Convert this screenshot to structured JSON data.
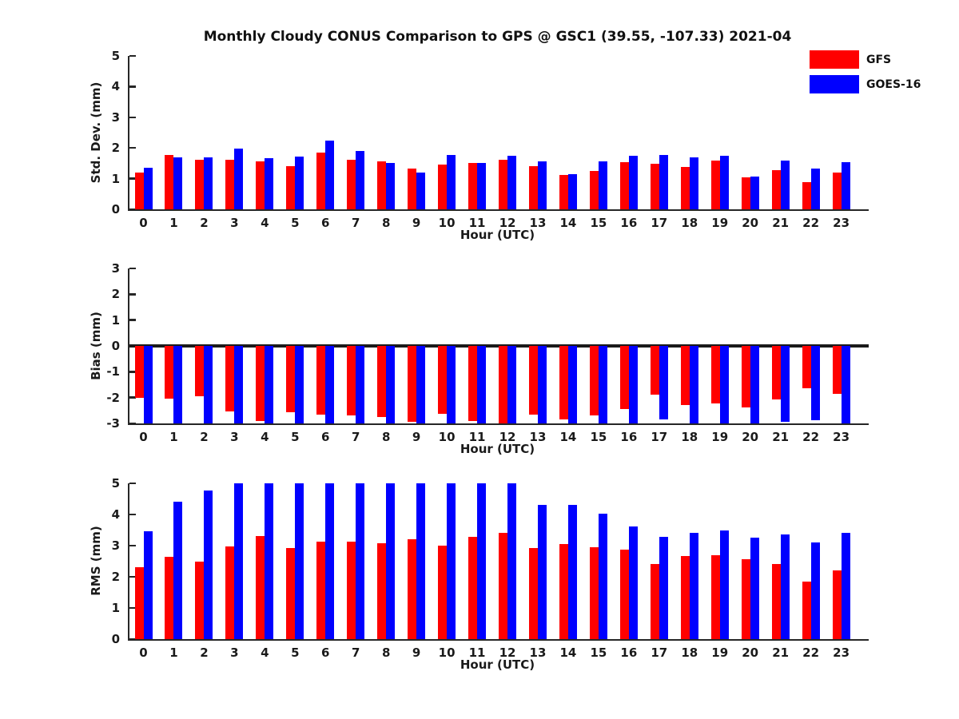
{
  "title": "Monthly Cloudy CONUS Comparison to GPS @ GSC1 (39.55, -107.33) 2021-04",
  "legend": {
    "items": [
      {
        "label": "GFS",
        "color": "#ff0000"
      },
      {
        "label": "GOES-16",
        "color": "#0000ff"
      }
    ]
  },
  "colors": {
    "gfs_bar": "#ff0000",
    "goes16_bar": "#0000ff",
    "axis": "#262626",
    "text": "#1a1a1a"
  },
  "chart_data": [
    {
      "type": "bar",
      "ylabel": "Std. Dev. (mm)",
      "xlabel": "Hour (UTC)",
      "ylim": [
        0,
        5
      ],
      "yticks": [
        0,
        1,
        2,
        3,
        4,
        5
      ],
      "grid": false,
      "legend_position": "top-right",
      "categories": [
        0,
        1,
        2,
        3,
        4,
        5,
        6,
        7,
        8,
        9,
        10,
        11,
        12,
        13,
        14,
        15,
        16,
        17,
        18,
        19,
        20,
        21,
        22,
        23
      ],
      "series": [
        {
          "name": "GFS",
          "color": "#ff0000",
          "values": [
            1.2,
            1.78,
            1.62,
            1.61,
            1.57,
            1.4,
            1.85,
            1.61,
            1.55,
            1.32,
            1.45,
            1.51,
            1.61,
            1.4,
            1.11,
            1.25,
            1.53,
            1.48,
            1.38,
            1.58,
            1.03,
            1.27,
            0.88,
            1.21
          ]
        },
        {
          "name": "GOES-16",
          "color": "#0000ff",
          "values": [
            1.35,
            1.7,
            1.7,
            1.99,
            1.67,
            1.71,
            2.23,
            1.9,
            1.5,
            1.19,
            1.76,
            1.52,
            1.74,
            1.57,
            1.14,
            1.57,
            1.75,
            1.77,
            1.7,
            1.74,
            1.06,
            1.6,
            1.32,
            1.53
          ]
        }
      ]
    },
    {
      "type": "bar",
      "ylabel": "Bias (mm)",
      "xlabel": "Hour (UTC)",
      "ylim": [
        -3,
        3
      ],
      "yticks": [
        -3,
        -2,
        -1,
        0,
        1,
        2,
        3
      ],
      "grid": false,
      "categories": [
        0,
        1,
        2,
        3,
        4,
        5,
        6,
        7,
        8,
        9,
        10,
        11,
        12,
        13,
        14,
        15,
        16,
        17,
        18,
        19,
        20,
        21,
        22,
        23
      ],
      "series": [
        {
          "name": "GFS",
          "color": "#ff0000",
          "values": [
            -2.0,
            -2.05,
            -1.95,
            -2.53,
            -2.92,
            -2.58,
            -2.65,
            -2.68,
            -2.74,
            -2.95,
            -2.62,
            -2.9,
            -3.0,
            -2.65,
            -2.84,
            -2.7,
            -2.45,
            -1.9,
            -2.3,
            -2.22,
            -2.39,
            -2.06,
            -1.64,
            -1.86
          ]
        },
        {
          "name": "GOES-16",
          "color": "#0000ff",
          "values": [
            -3.0,
            -3.0,
            -3.0,
            -3.0,
            -3.0,
            -3.0,
            -3.0,
            -3.0,
            -3.0,
            -3.0,
            -3.0,
            -3.0,
            -3.0,
            -3.0,
            -3.0,
            -3.0,
            -3.0,
            -2.84,
            -3.0,
            -3.0,
            -3.0,
            -2.93,
            -2.89,
            -3.0
          ]
        }
      ]
    },
    {
      "type": "bar",
      "ylabel": "RMS (mm)",
      "xlabel": "Hour (UTC)",
      "ylim": [
        0,
        5
      ],
      "yticks": [
        0,
        1,
        2,
        3,
        4,
        5
      ],
      "grid": false,
      "categories": [
        0,
        1,
        2,
        3,
        4,
        5,
        6,
        7,
        8,
        9,
        10,
        11,
        12,
        13,
        14,
        15,
        16,
        17,
        18,
        19,
        20,
        21,
        22,
        23
      ],
      "series": [
        {
          "name": "GFS",
          "color": "#ff0000",
          "values": [
            2.31,
            2.65,
            2.5,
            2.97,
            3.31,
            2.93,
            3.14,
            3.14,
            3.08,
            3.21,
            2.99,
            3.28,
            3.4,
            2.93,
            3.06,
            2.94,
            2.87,
            2.41,
            2.67,
            2.69,
            2.56,
            2.41,
            1.85,
            2.21
          ]
        },
        {
          "name": "GOES-16",
          "color": "#0000ff",
          "values": [
            3.45,
            4.4,
            4.78,
            5.0,
            5.0,
            5.0,
            5.0,
            5.0,
            5.0,
            5.0,
            5.0,
            5.0,
            5.0,
            4.3,
            4.3,
            4.03,
            3.61,
            3.28,
            3.42,
            3.5,
            3.26,
            3.35,
            3.11,
            3.42
          ]
        }
      ]
    }
  ]
}
